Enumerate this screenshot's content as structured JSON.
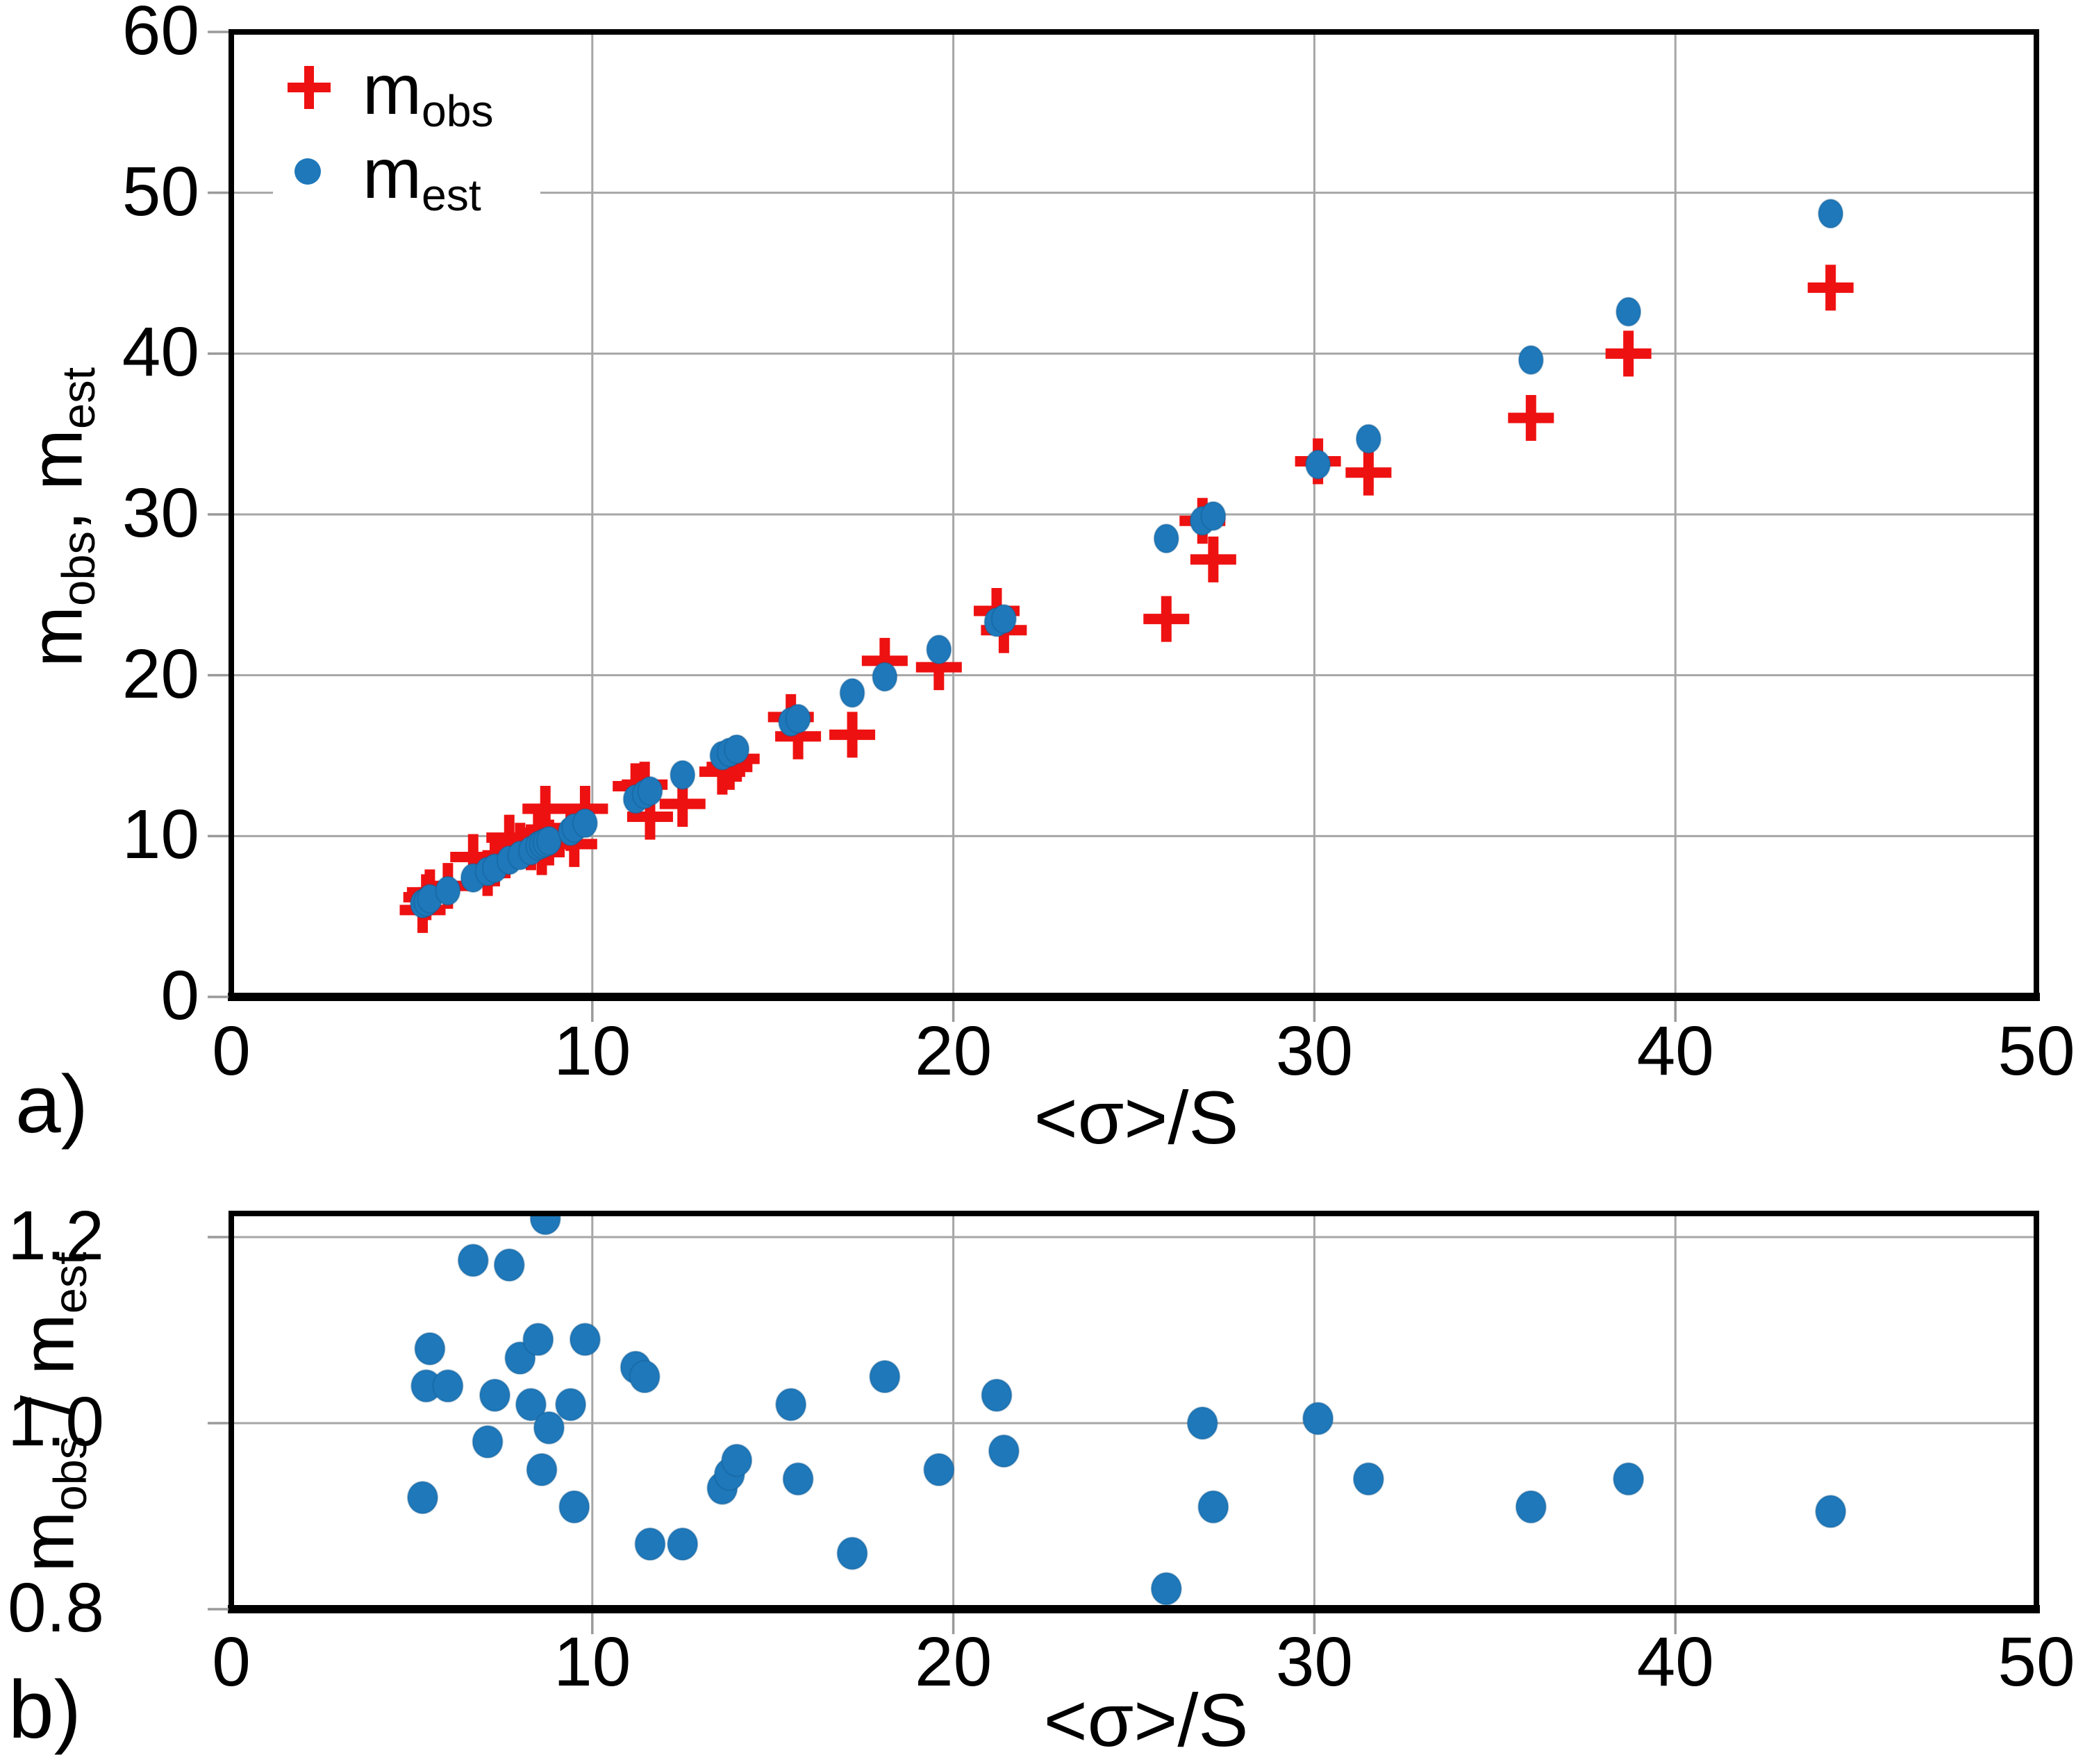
{
  "figure": {
    "background": "#ffffff",
    "panel_a_letter": "a)",
    "panel_b_letter": "b)"
  },
  "colors": {
    "mobs_red": "#ee1111",
    "mest_blue": "#1e78ba",
    "mest_blue_edge": "#11578a",
    "gridline": "#a6a6a6",
    "tick": "#9a9a9a",
    "frame": "#000000",
    "text": "#000000",
    "legend_bg": "#ffffff"
  },
  "legend": {
    "items": [
      {
        "marker": "cross",
        "label_main": "m",
        "label_sub": "obs"
      },
      {
        "marker": "dot",
        "label_main": "m",
        "label_sub": "est"
      }
    ]
  },
  "panel_a": {
    "letter": "a)",
    "x_title": "<σ>/S",
    "y_title_parts": {
      "m1": "m",
      "s1": "obs",
      "m2": ", m",
      "s2": "est"
    },
    "x_tick_labels": [
      "0",
      "10",
      "20",
      "30",
      "40",
      "50"
    ],
    "y_tick_labels": [
      "60",
      "50",
      "40",
      "30",
      "20",
      "10",
      "0"
    ]
  },
  "panel_b": {
    "letter": "b)",
    "x_title": "<σ>/S",
    "y_title_parts": {
      "m1": "m",
      "s1": "obs",
      "m2": " / m",
      "s2": "est"
    },
    "x_tick_labels": [
      "0",
      "10",
      "20",
      "30",
      "40",
      "50"
    ],
    "y_tick_labels": [
      "1.2",
      "1.0",
      "0.8"
    ]
  },
  "chart_data": [
    {
      "type": "scatter",
      "panel": "a",
      "xlabel": "<σ>/S",
      "ylabel": "m_obs, m_est",
      "xlim": [
        0,
        50
      ],
      "ylim": [
        0,
        60
      ],
      "x_ticks": [
        0,
        10,
        20,
        30,
        40,
        50
      ],
      "y_ticks": [
        0,
        10,
        20,
        30,
        40,
        50,
        60
      ],
      "grid": true,
      "legend_position": "top-left",
      "series": [
        {
          "name": "m_obs",
          "marker": "cross",
          "color_key": "mobs_red",
          "points": [
            [
              5.3,
              5.4
            ],
            [
              5.4,
              6.2
            ],
            [
              5.5,
              6.5
            ],
            [
              6.0,
              6.9
            ],
            [
              6.7,
              8.7
            ],
            [
              7.1,
              7.7
            ],
            [
              7.3,
              8.3
            ],
            [
              7.7,
              9.9
            ],
            [
              8.0,
              9.4
            ],
            [
              8.3,
              9.3
            ],
            [
              8.5,
              10.2
            ],
            [
              8.6,
              9.0
            ],
            [
              8.7,
              11.7
            ],
            [
              8.8,
              9.6
            ],
            [
              9.4,
              10.5
            ],
            [
              9.5,
              9.5
            ],
            [
              9.8,
              11.7
            ],
            [
              11.2,
              13.1
            ],
            [
              11.45,
              13.2
            ],
            [
              11.6,
              11.2
            ],
            [
              12.5,
              12.0
            ],
            [
              13.6,
              14.0
            ],
            [
              13.8,
              14.3
            ],
            [
              14.0,
              14.8
            ],
            [
              15.5,
              17.4
            ],
            [
              15.7,
              16.2
            ],
            [
              17.2,
              16.3
            ],
            [
              18.1,
              20.9
            ],
            [
              19.6,
              20.5
            ],
            [
              21.2,
              24.0
            ],
            [
              21.4,
              22.8
            ],
            [
              25.9,
              23.5
            ],
            [
              26.9,
              29.6
            ],
            [
              27.2,
              27.2
            ],
            [
              30.1,
              33.3
            ],
            [
              31.5,
              32.6
            ],
            [
              36.0,
              36.0
            ],
            [
              38.7,
              40.0
            ],
            [
              44.3,
              44.1
            ]
          ]
        },
        {
          "name": "m_est",
          "marker": "dot",
          "color_key": "mest_blue",
          "points": [
            [
              5.3,
              5.8
            ],
            [
              5.4,
              5.9
            ],
            [
              5.5,
              6.1
            ],
            [
              6.0,
              6.6
            ],
            [
              6.7,
              7.4
            ],
            [
              7.1,
              7.8
            ],
            [
              7.3,
              8.0
            ],
            [
              7.7,
              8.5
            ],
            [
              8.0,
              8.8
            ],
            [
              8.3,
              9.1
            ],
            [
              8.5,
              9.4
            ],
            [
              8.6,
              9.5
            ],
            [
              8.7,
              9.6
            ],
            [
              8.8,
              9.7
            ],
            [
              9.4,
              10.3
            ],
            [
              9.5,
              10.5
            ],
            [
              9.8,
              10.8
            ],
            [
              11.2,
              12.3
            ],
            [
              11.45,
              12.6
            ],
            [
              11.6,
              12.8
            ],
            [
              12.5,
              13.8
            ],
            [
              13.6,
              15.0
            ],
            [
              13.8,
              15.2
            ],
            [
              14.0,
              15.4
            ],
            [
              15.5,
              17.1
            ],
            [
              15.7,
              17.3
            ],
            [
              17.2,
              18.9
            ],
            [
              18.1,
              19.9
            ],
            [
              19.6,
              21.6
            ],
            [
              21.2,
              23.3
            ],
            [
              21.4,
              23.5
            ],
            [
              25.9,
              28.5
            ],
            [
              26.9,
              29.6
            ],
            [
              27.2,
              29.9
            ],
            [
              30.1,
              33.1
            ],
            [
              31.5,
              34.7
            ],
            [
              36.0,
              39.6
            ],
            [
              38.7,
              42.6
            ],
            [
              44.3,
              48.7
            ]
          ]
        }
      ]
    },
    {
      "type": "scatter",
      "panel": "b",
      "xlabel": "<σ>/S",
      "ylabel": "m_obs / m_est",
      "xlim": [
        0,
        50
      ],
      "ylim": [
        0.8,
        1.2254
      ],
      "x_ticks": [
        0,
        10,
        20,
        30,
        40,
        50
      ],
      "y_ticks": [
        0.8,
        1.0,
        1.2
      ],
      "grid": true,
      "series": [
        {
          "name": "m_obs / m_est",
          "marker": "dot",
          "color_key": "mest_blue",
          "points": [
            [
              5.3,
              0.92
            ],
            [
              5.4,
              1.04
            ],
            [
              5.5,
              1.08
            ],
            [
              6.0,
              1.04
            ],
            [
              6.7,
              1.175
            ],
            [
              7.1,
              0.98
            ],
            [
              7.3,
              1.03
            ],
            [
              7.7,
              1.17
            ],
            [
              8.0,
              1.07
            ],
            [
              8.3,
              1.02
            ],
            [
              8.5,
              1.09
            ],
            [
              8.6,
              0.95
            ],
            [
              8.7,
              1.22
            ],
            [
              8.8,
              0.995
            ],
            [
              9.4,
              1.02
            ],
            [
              9.5,
              0.91
            ],
            [
              9.8,
              1.09
            ],
            [
              11.2,
              1.06
            ],
            [
              11.45,
              1.05
            ],
            [
              11.6,
              0.87
            ],
            [
              12.5,
              0.87
            ],
            [
              13.6,
              0.93
            ],
            [
              13.8,
              0.945
            ],
            [
              14.0,
              0.96
            ],
            [
              15.5,
              1.02
            ],
            [
              15.7,
              0.94
            ],
            [
              17.2,
              0.86
            ],
            [
              18.1,
              1.05
            ],
            [
              19.6,
              0.95
            ],
            [
              21.2,
              1.03
            ],
            [
              21.4,
              0.97
            ],
            [
              25.9,
              0.822
            ],
            [
              26.9,
              1.0
            ],
            [
              27.2,
              0.91
            ],
            [
              30.1,
              1.005
            ],
            [
              31.5,
              0.94
            ],
            [
              36.0,
              0.91
            ],
            [
              38.7,
              0.94
            ],
            [
              44.3,
              0.905
            ]
          ]
        }
      ]
    }
  ]
}
